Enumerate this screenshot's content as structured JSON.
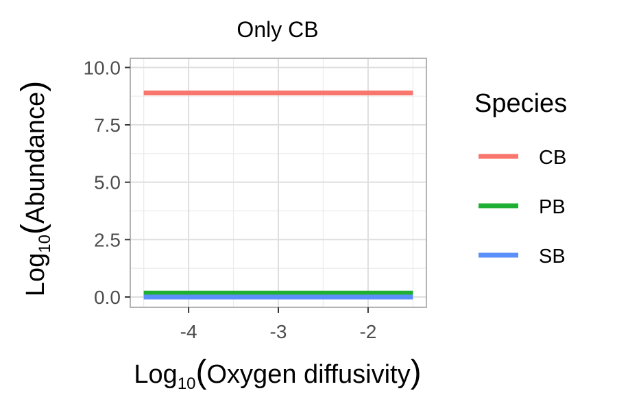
{
  "chart_data": {
    "type": "line",
    "title": "Only CB",
    "xlabel": {
      "prefix": "Log",
      "subscript": "10",
      "open": "(",
      "inner": "Oxygen diffusivity",
      "close": ")"
    },
    "ylabel": {
      "prefix": "Log",
      "subscript": "10",
      "open": "(",
      "inner": "Abundance",
      "close": ")"
    },
    "xlim": [
      -4.65,
      -1.35
    ],
    "ylim": [
      -0.45,
      10.4
    ],
    "x_ticks": [
      -4,
      -3,
      -2
    ],
    "x_tick_labels": [
      "-4",
      "-3",
      "-2"
    ],
    "y_ticks": [
      0,
      2.5,
      5,
      7.5,
      10
    ],
    "y_tick_labels": [
      "0.0",
      "2.5",
      "5.0",
      "7.5",
      "10.0"
    ],
    "grid": true,
    "legend_position": "right",
    "legend_title": "Species",
    "series": [
      {
        "name": "CB",
        "color": "#F8766D",
        "x": [
          -4.5,
          -1.5
        ],
        "y": [
          8.89,
          8.89
        ]
      },
      {
        "name": "PB",
        "color": "#1FB033",
        "x": [
          -4.5,
          -1.5
        ],
        "y": [
          0.17,
          0.17
        ]
      },
      {
        "name": "SB",
        "color": "#5B8FF9",
        "x": [
          -4.5,
          -1.5
        ],
        "y": [
          0.0,
          0.0
        ]
      }
    ]
  }
}
